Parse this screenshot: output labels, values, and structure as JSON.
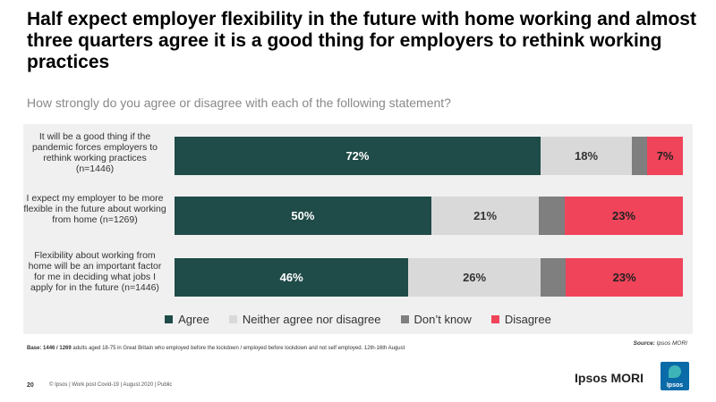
{
  "title": "Half expect employer flexibility in the future with home working and almost three quarters agree it is a good thing for employers to rethink working practices",
  "subtitle": "How strongly do you agree or disagree with each of the following statement?",
  "chart_data": {
    "type": "bar",
    "orientation": "horizontal",
    "stacked": true,
    "percent_scale": true,
    "categories": [
      "It will be a good thing if the pandemic forces employers to rethink working practices (n=1446)",
      "I expect my employer to be more flexible in the future about working from home (n=1269)",
      "Flexibility about working from home will be an important factor for me in deciding what jobs I apply for in the future (n=1446)"
    ],
    "series": [
      {
        "name": "Agree",
        "color": "#1f4b48",
        "values": [
          72,
          50,
          46
        ],
        "labels": [
          "72%",
          "50%",
          "46%"
        ]
      },
      {
        "name": "Neither agree nor disagree",
        "color": "#d9d9d9",
        "values": [
          18,
          21,
          26
        ],
        "labels": [
          "18%",
          "21%",
          "26%"
        ]
      },
      {
        "name": "Don’t know",
        "color": "#7f7f7f",
        "values": [
          3,
          5,
          5
        ],
        "labels": [
          "",
          "",
          ""
        ]
      },
      {
        "name": "Disagree",
        "color": "#f0445a",
        "values": [
          7,
          23,
          23
        ],
        "labels": [
          "7%",
          "23%",
          "23%"
        ]
      }
    ],
    "legend_position": "bottom"
  },
  "base_prefix": "Base: ",
  "base_bold": "1446 / 1269",
  "base_text": " adults aged 18-75 in Great Britain who employed before the lockdown / employed before lockdown and not self employed. 12th-16th August",
  "source_label": "Source:",
  "source_value": " Ipsos MORI",
  "page_number": "20",
  "footer": "© Ipsos | Work post Covid-19 | August 2020 | Public",
  "brand": "Ipsos MORI",
  "logo_text": "Ipsos"
}
